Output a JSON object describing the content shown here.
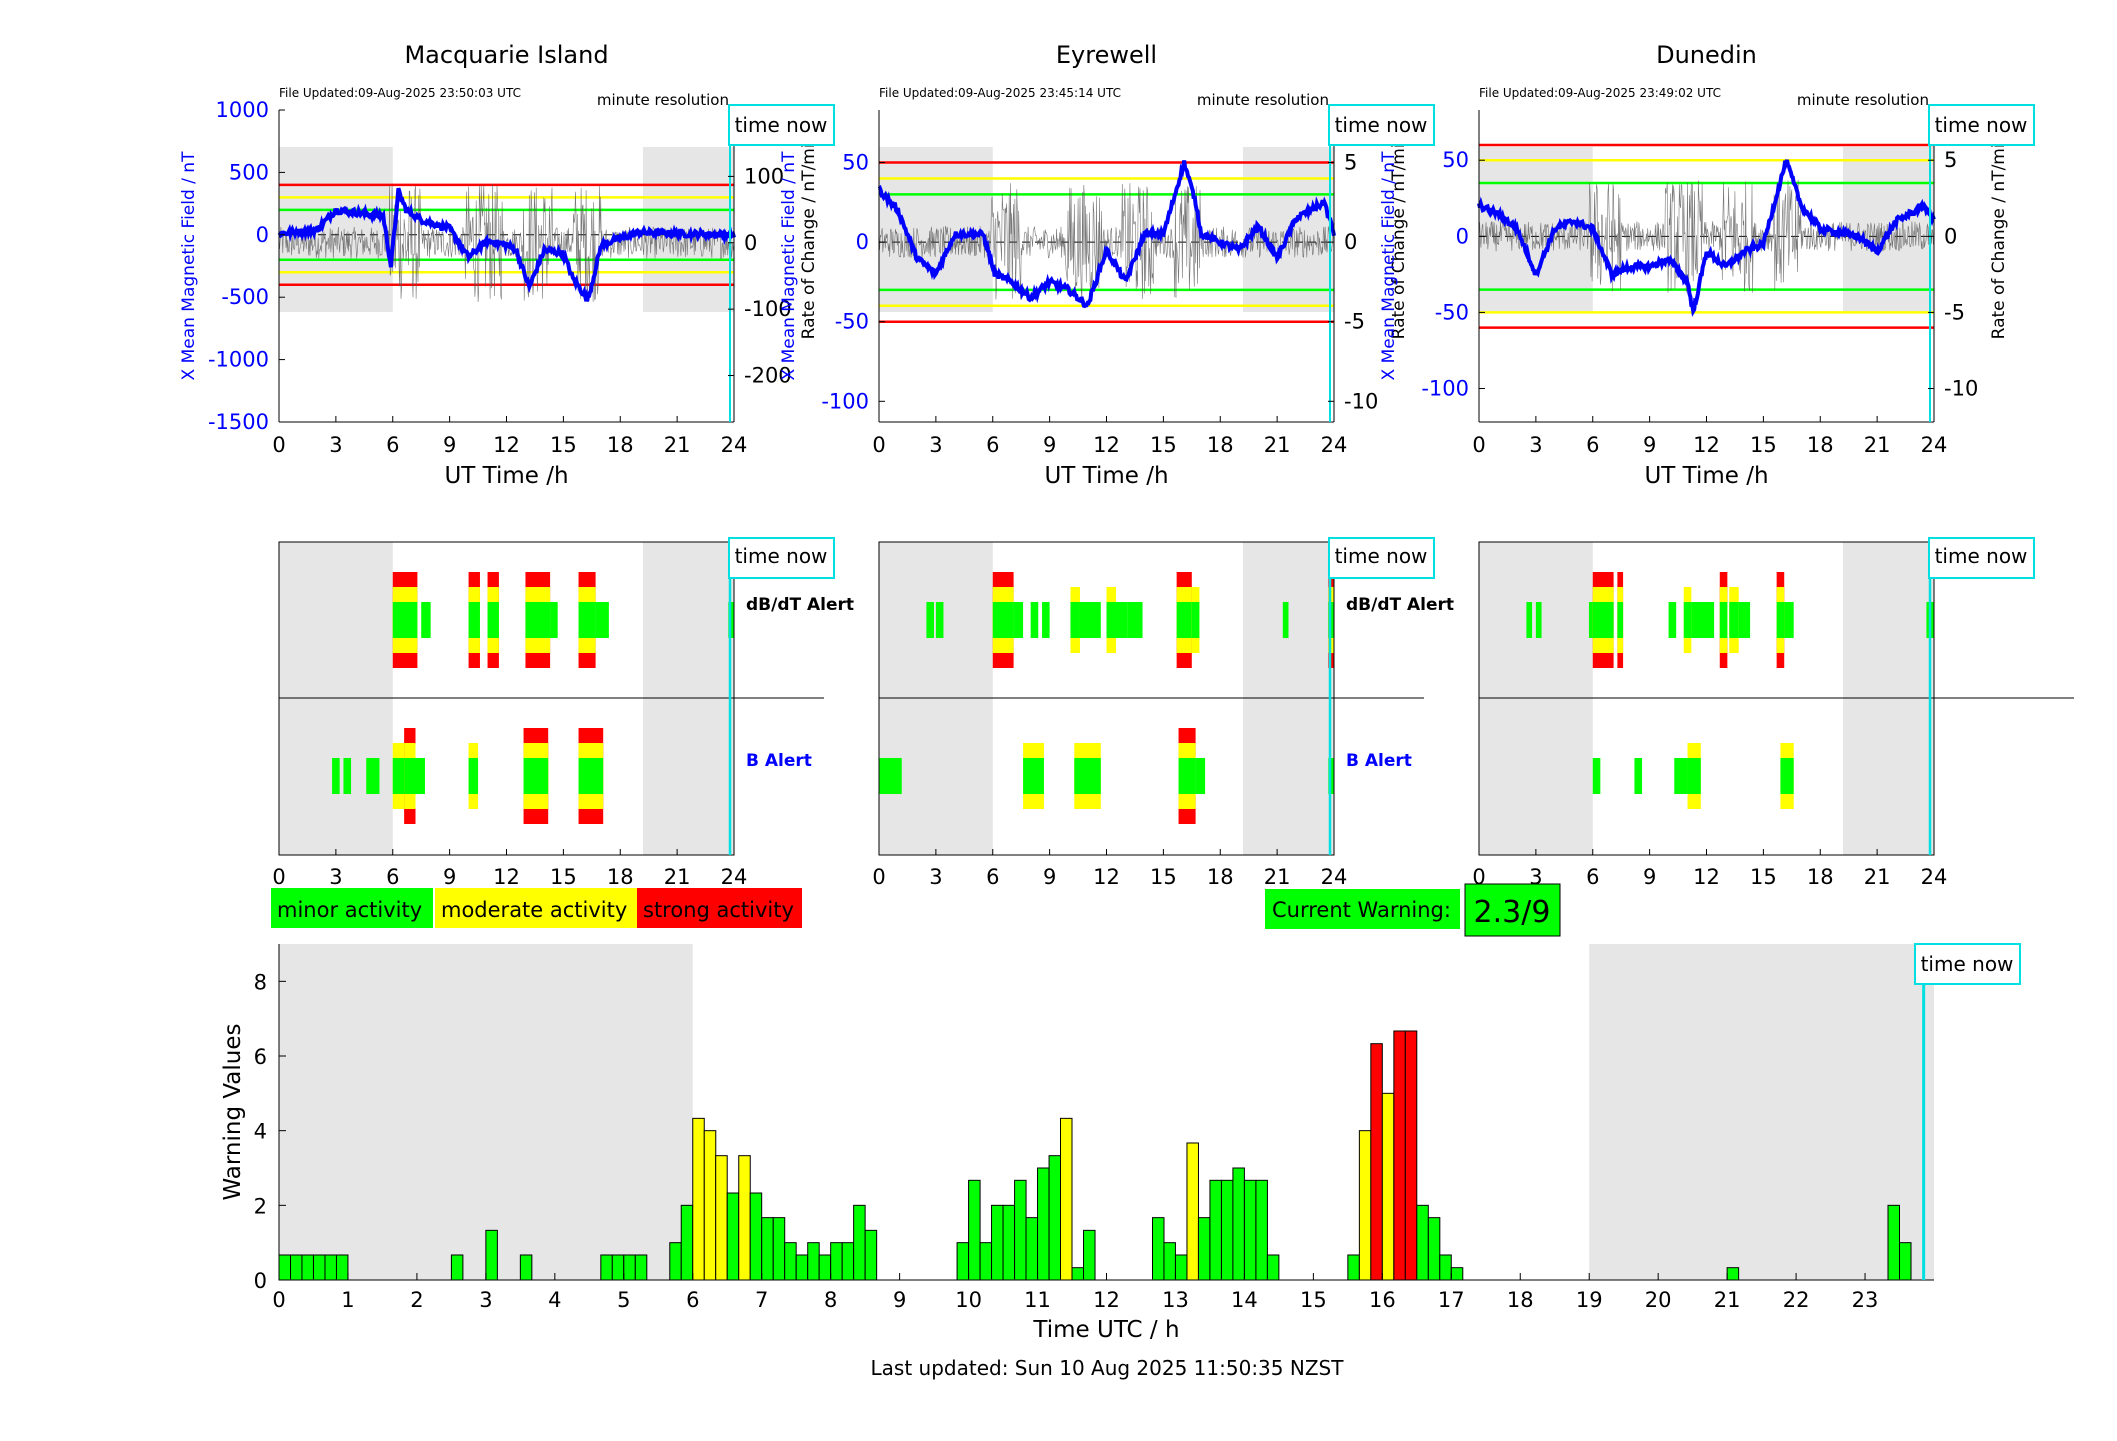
{
  "stations": [
    {
      "name": "Macquarie Island",
      "file_updated": "File Updated:09-Aug-2025 23:50:03 UTC",
      "resolution": "minute resolution",
      "time_now": "time now",
      "left_ylabel": "X Mean Magnetic Field / nT",
      "right_ylabel": "Rate of Change / nT/min",
      "left_ticks": [
        "1000",
        "500",
        "0",
        "-500",
        "-1000",
        "-1500"
      ],
      "right_ticks": [
        "100",
        "0",
        "-100",
        "-200"
      ],
      "x_ticks": [
        "0",
        "3",
        "6",
        "9",
        "12",
        "15",
        "18",
        "21",
        "24"
      ],
      "xlabel": "UT Time /h",
      "alert_x_ticks": [
        "0",
        "3",
        "6",
        "9",
        "12",
        "15",
        "18",
        "21",
        "24"
      ]
    },
    {
      "name": "Eyrewell",
      "file_updated": "File Updated:09-Aug-2025 23:45:14 UTC",
      "resolution": "minute resolution",
      "time_now": "time now",
      "left_ylabel": "X Mean Magnetic Field / nT",
      "right_ylabel": "Rate of Change / nT/min",
      "left_ticks": [
        "50",
        "0",
        "-50",
        "-100"
      ],
      "right_ticks": [
        "5",
        "0",
        "-5",
        "-10"
      ],
      "x_ticks": [
        "0",
        "3",
        "6",
        "9",
        "12",
        "15",
        "18",
        "21",
        "24"
      ],
      "xlabel": "UT Time /h",
      "alert_x_ticks": [
        "0",
        "3",
        "6",
        "9",
        "12",
        "15",
        "18",
        "21",
        "24"
      ]
    },
    {
      "name": "Dunedin",
      "file_updated": "File Updated:09-Aug-2025 23:49:02 UTC",
      "resolution": "minute resolution",
      "time_now": "time now",
      "left_ylabel": "X Mean Magnetic Field / nT",
      "right_ylabel": "Rate of Change / nT/min",
      "left_ticks": [
        "50",
        "0",
        "-50",
        "-100"
      ],
      "right_ticks": [
        "5",
        "0",
        "-5",
        "-10"
      ],
      "x_ticks": [
        "0",
        "3",
        "6",
        "9",
        "12",
        "15",
        "18",
        "21",
        "24"
      ],
      "xlabel": "UT Time /h",
      "alert_x_ticks": [
        "0",
        "3",
        "6",
        "9",
        "12",
        "15",
        "18",
        "21",
        "24"
      ]
    }
  ],
  "alert_labels": {
    "dbdt": "dB/dT Alert",
    "b": "B Alert"
  },
  "legend": {
    "minor": "minor activity",
    "moderate": "moderate activity",
    "strong": "strong activity"
  },
  "current_warning": {
    "label": "Current Warning:",
    "value": "2.3/9"
  },
  "footer": "Last updated: Sun 10 Aug 2025 11:50:35 NZST",
  "colors": {
    "minor": "#00ff00",
    "moderate": "#ffff00",
    "strong": "#ff0000",
    "mean_field": "#0000ff",
    "now_line": "#00e0e0",
    "night_shade": "#e6e6e6"
  },
  "chart_data": {
    "type": "bar",
    "xlabel": "Time UTC / h",
    "ylabel": "Warning Values",
    "ylim": [
      0,
      9
    ],
    "xlim": [
      0,
      24
    ],
    "x_ticks": [
      "0",
      "1",
      "2",
      "3",
      "4",
      "5",
      "6",
      "7",
      "8",
      "9",
      "10",
      "11",
      "12",
      "13",
      "14",
      "15",
      "16",
      "17",
      "18",
      "19",
      "20",
      "21",
      "22",
      "23"
    ],
    "y_ticks": [
      "0",
      "2",
      "4",
      "6",
      "8"
    ],
    "time_now": "time now",
    "night_shading": [
      [
        0,
        6
      ],
      [
        19,
        24
      ]
    ],
    "bin_width_h": 0.1667,
    "bars": [
      {
        "x": 0.0,
        "v": 0.67,
        "level": "minor"
      },
      {
        "x": 0.167,
        "v": 0.67,
        "level": "minor"
      },
      {
        "x": 0.333,
        "v": 0.67,
        "level": "minor"
      },
      {
        "x": 0.5,
        "v": 0.67,
        "level": "minor"
      },
      {
        "x": 0.667,
        "v": 0.67,
        "level": "minor"
      },
      {
        "x": 0.833,
        "v": 0.67,
        "level": "minor"
      },
      {
        "x": 2.5,
        "v": 0.67,
        "level": "minor"
      },
      {
        "x": 3.0,
        "v": 1.33,
        "level": "minor"
      },
      {
        "x": 3.5,
        "v": 0.67,
        "level": "minor"
      },
      {
        "x": 4.667,
        "v": 0.67,
        "level": "minor"
      },
      {
        "x": 4.833,
        "v": 0.67,
        "level": "minor"
      },
      {
        "x": 5.0,
        "v": 0.67,
        "level": "minor"
      },
      {
        "x": 5.167,
        "v": 0.67,
        "level": "minor"
      },
      {
        "x": 5.667,
        "v": 1.0,
        "level": "minor"
      },
      {
        "x": 5.833,
        "v": 2.0,
        "level": "minor"
      },
      {
        "x": 6.0,
        "v": 4.33,
        "level": "moderate"
      },
      {
        "x": 6.167,
        "v": 4.0,
        "level": "moderate"
      },
      {
        "x": 6.333,
        "v": 3.33,
        "level": "moderate"
      },
      {
        "x": 6.5,
        "v": 2.33,
        "level": "minor"
      },
      {
        "x": 6.667,
        "v": 3.33,
        "level": "moderate"
      },
      {
        "x": 6.833,
        "v": 2.33,
        "level": "minor"
      },
      {
        "x": 7.0,
        "v": 1.67,
        "level": "minor"
      },
      {
        "x": 7.167,
        "v": 1.67,
        "level": "minor"
      },
      {
        "x": 7.333,
        "v": 1.0,
        "level": "minor"
      },
      {
        "x": 7.5,
        "v": 0.67,
        "level": "minor"
      },
      {
        "x": 7.667,
        "v": 1.0,
        "level": "minor"
      },
      {
        "x": 7.833,
        "v": 0.67,
        "level": "minor"
      },
      {
        "x": 8.0,
        "v": 1.0,
        "level": "minor"
      },
      {
        "x": 8.167,
        "v": 1.0,
        "level": "minor"
      },
      {
        "x": 8.333,
        "v": 2.0,
        "level": "minor"
      },
      {
        "x": 8.5,
        "v": 1.33,
        "level": "minor"
      },
      {
        "x": 9.833,
        "v": 1.0,
        "level": "minor"
      },
      {
        "x": 10.0,
        "v": 2.67,
        "level": "minor"
      },
      {
        "x": 10.167,
        "v": 1.0,
        "level": "minor"
      },
      {
        "x": 10.333,
        "v": 2.0,
        "level": "minor"
      },
      {
        "x": 10.5,
        "v": 2.0,
        "level": "minor"
      },
      {
        "x": 10.667,
        "v": 2.67,
        "level": "minor"
      },
      {
        "x": 10.833,
        "v": 1.67,
        "level": "minor"
      },
      {
        "x": 11.0,
        "v": 3.0,
        "level": "minor"
      },
      {
        "x": 11.167,
        "v": 3.33,
        "level": "minor"
      },
      {
        "x": 11.333,
        "v": 4.33,
        "level": "moderate"
      },
      {
        "x": 11.5,
        "v": 0.33,
        "level": "minor"
      },
      {
        "x": 11.667,
        "v": 1.33,
        "level": "minor"
      },
      {
        "x": 12.667,
        "v": 1.67,
        "level": "minor"
      },
      {
        "x": 12.833,
        "v": 1.0,
        "level": "minor"
      },
      {
        "x": 13.0,
        "v": 0.67,
        "level": "minor"
      },
      {
        "x": 13.167,
        "v": 3.67,
        "level": "moderate"
      },
      {
        "x": 13.333,
        "v": 1.67,
        "level": "minor"
      },
      {
        "x": 13.5,
        "v": 2.67,
        "level": "minor"
      },
      {
        "x": 13.667,
        "v": 2.67,
        "level": "minor"
      },
      {
        "x": 13.833,
        "v": 3.0,
        "level": "minor"
      },
      {
        "x": 14.0,
        "v": 2.67,
        "level": "minor"
      },
      {
        "x": 14.167,
        "v": 2.67,
        "level": "minor"
      },
      {
        "x": 14.333,
        "v": 0.67,
        "level": "minor"
      },
      {
        "x": 15.5,
        "v": 0.67,
        "level": "minor"
      },
      {
        "x": 15.667,
        "v": 4.0,
        "level": "moderate"
      },
      {
        "x": 15.833,
        "v": 6.33,
        "level": "strong"
      },
      {
        "x": 16.0,
        "v": 5.0,
        "level": "moderate"
      },
      {
        "x": 16.167,
        "v": 6.67,
        "level": "strong"
      },
      {
        "x": 16.333,
        "v": 6.67,
        "level": "strong"
      },
      {
        "x": 16.5,
        "v": 2.0,
        "level": "minor"
      },
      {
        "x": 16.667,
        "v": 1.67,
        "level": "minor"
      },
      {
        "x": 16.833,
        "v": 0.67,
        "level": "minor"
      },
      {
        "x": 17.0,
        "v": 0.33,
        "level": "minor"
      },
      {
        "x": 21.0,
        "v": 0.33,
        "level": "minor"
      },
      {
        "x": 23.333,
        "v": 2.0,
        "level": "minor"
      },
      {
        "x": 23.5,
        "v": 1.0,
        "level": "minor"
      }
    ]
  }
}
